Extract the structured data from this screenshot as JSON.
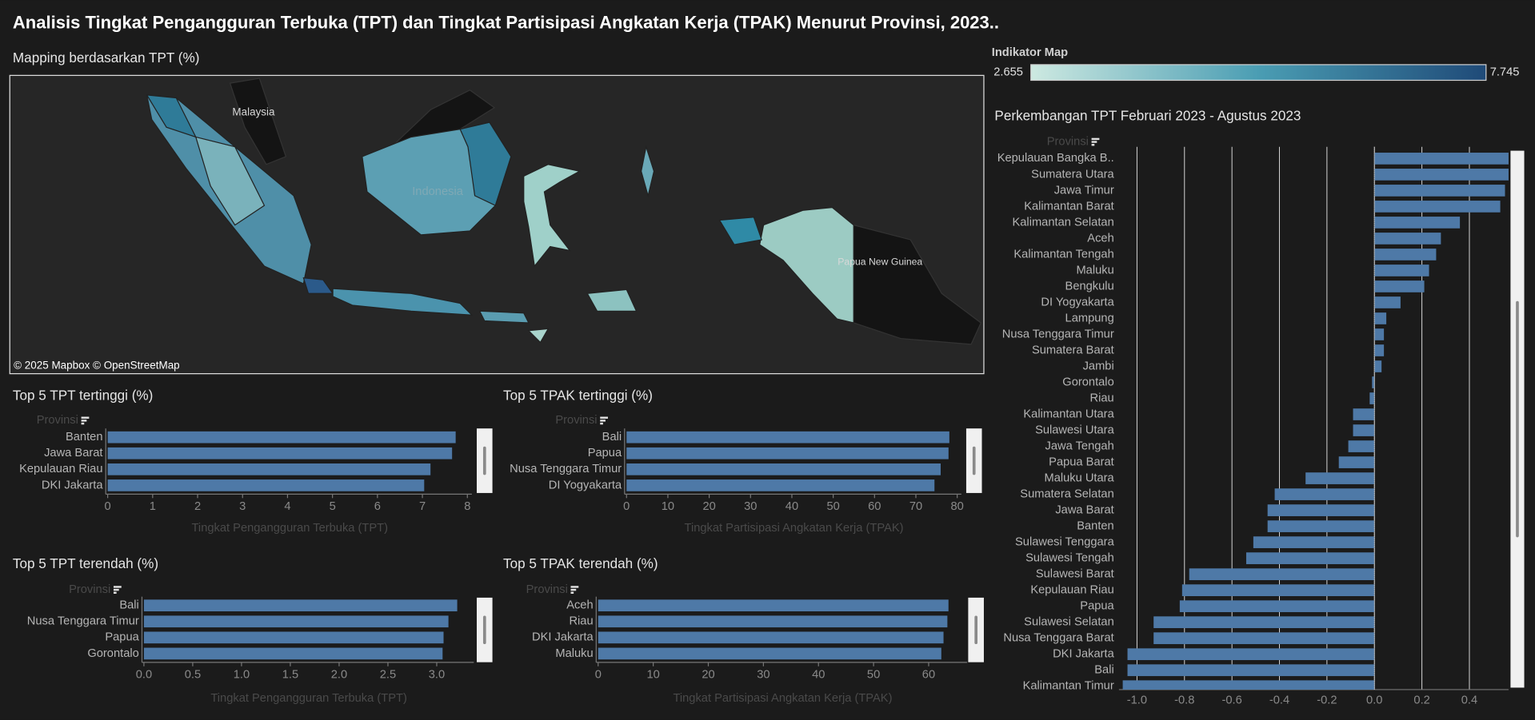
{
  "title": "Analisis Tingkat Pengangguran Terbuka (TPT) dan Tingkat Partisipasi Angkatan Kerja (TPAK) Menurut Provinsi, 2023..",
  "map": {
    "title": "Mapping berdasarkan TPT (%)",
    "labels": [
      "Malaysia",
      "Indonesia",
      "Papua New Guinea"
    ],
    "attribution": "© 2025 Mapbox © OpenStreetMap"
  },
  "color_legend": {
    "title": "Indikator Map",
    "min": 2.655,
    "max": 7.745
  },
  "chart_data": [
    {
      "type": "bar",
      "orientation": "horizontal",
      "title": "Top 5 TPT tertinggi (%)",
      "category_header": "Provinsi",
      "categories": [
        "Banten",
        "Jawa Barat",
        "Kepulauan Riau",
        "DKI Jakarta"
      ],
      "values": [
        7.74,
        7.66,
        7.18,
        7.04
      ],
      "color": "#4e79a7",
      "xlim": [
        0,
        8.1
      ],
      "xticks": [
        0,
        1,
        2,
        3,
        4,
        5,
        6,
        7,
        8
      ],
      "x_label": "Tingkat Pengangguran Terbuka (TPT)",
      "grid": false
    },
    {
      "type": "bar",
      "orientation": "horizontal",
      "title": "Top 5 TPAK tertinggi (%)",
      "category_header": "Provinsi",
      "categories": [
        "Bali",
        "Papua",
        "Nusa Tenggara Timur",
        "DI Yogyakarta"
      ],
      "values": [
        78.1,
        77.9,
        76.0,
        74.5
      ],
      "color": "#4e79a7",
      "xlim": [
        0,
        81
      ],
      "xticks": [
        0,
        10,
        20,
        30,
        40,
        50,
        60,
        70,
        80
      ],
      "x_label": "Tingkat Partisipasi Angkatan Kerja (TPAK)",
      "grid": false
    },
    {
      "type": "bar",
      "orientation": "horizontal",
      "title": "Top 5 TPT terendah (%)",
      "category_header": "Provinsi",
      "categories": [
        "Bali",
        "Nusa Tenggara Timur",
        "Papua",
        "Gorontalo"
      ],
      "values": [
        3.21,
        3.12,
        3.07,
        3.06
      ],
      "color": "#4e79a7",
      "xlim": [
        0,
        3.38
      ],
      "xticks": [
        {
          "value": 0,
          "label": "0.0"
        },
        0.5,
        {
          "value": 1,
          "label": "1.0"
        },
        1.5,
        {
          "value": 2,
          "label": "2.0"
        },
        2.5,
        {
          "value": 3,
          "label": "3.0"
        }
      ],
      "x_label": "Tingkat Pengangguran Terbuka (TPT)",
      "grid": false
    },
    {
      "type": "bar",
      "orientation": "horizontal",
      "title": "Top 5 TPAK terendah (%)",
      "category_header": "Provinsi",
      "categories": [
        "Aceh",
        "Riau",
        "DKI Jakarta",
        "Maluku"
      ],
      "values": [
        63.6,
        63.4,
        62.7,
        62.3
      ],
      "color": "#4e79a7",
      "xlim": [
        0,
        67
      ],
      "xticks": [
        0,
        10,
        20,
        30,
        40,
        50,
        60
      ],
      "x_label": "Tingkat Partisipasi Angkatan Kerja (TPAK)",
      "grid": false
    },
    {
      "type": "bar",
      "orientation": "horizontal",
      "title": "Perkembangan TPT Februari  2023 - Agustus 2023",
      "category_header": "Provinsi",
      "categories": [
        "Kepulauan Bangka B..",
        "Sumatera Utara",
        "Jawa Timur",
        "Kalimantan Barat",
        "Kalimantan Selatan",
        "Aceh",
        "Kalimantan Tengah",
        "Maluku",
        "Bengkulu",
        "DI Yogyakarta",
        "Lampung",
        "Nusa Tenggara Timur",
        "Sumatera Barat",
        "Jambi",
        "Gorontalo",
        "Riau",
        "Kalimantan Utara",
        "Sulawesi Utara",
        "Jawa Tengah",
        "Papua Barat",
        "Maluku Utara",
        "Sumatera Selatan",
        "Jawa Barat",
        "Banten",
        "Sulawesi Tenggara",
        "Sulawesi Tengah",
        "Sulawesi Barat",
        "Kepulauan Riau",
        "Papua",
        "Sulawesi Selatan",
        "Nusa Tenggara Barat",
        "DKI Jakarta",
        "Bali",
        "Kalimantan Timur"
      ],
      "values": [
        0.57,
        0.57,
        0.55,
        0.53,
        0.36,
        0.28,
        0.26,
        0.23,
        0.21,
        0.11,
        0.05,
        0.04,
        0.04,
        0.03,
        -0.01,
        -0.02,
        -0.09,
        -0.09,
        -0.11,
        -0.15,
        -0.29,
        -0.42,
        -0.45,
        -0.45,
        -0.51,
        -0.54,
        -0.78,
        -0.81,
        -0.82,
        -0.93,
        -0.93,
        -1.04,
        -1.04,
        -1.06
      ],
      "color": "#4e79a7",
      "xlim": [
        -1.076,
        0.565
      ],
      "xticks": [
        {
          "value": -1,
          "label": "-1.0"
        },
        -0.8,
        -0.6,
        -0.4,
        -0.2,
        {
          "value": 0,
          "label": "0.0"
        },
        0.2,
        0.4
      ],
      "grid": true
    }
  ]
}
